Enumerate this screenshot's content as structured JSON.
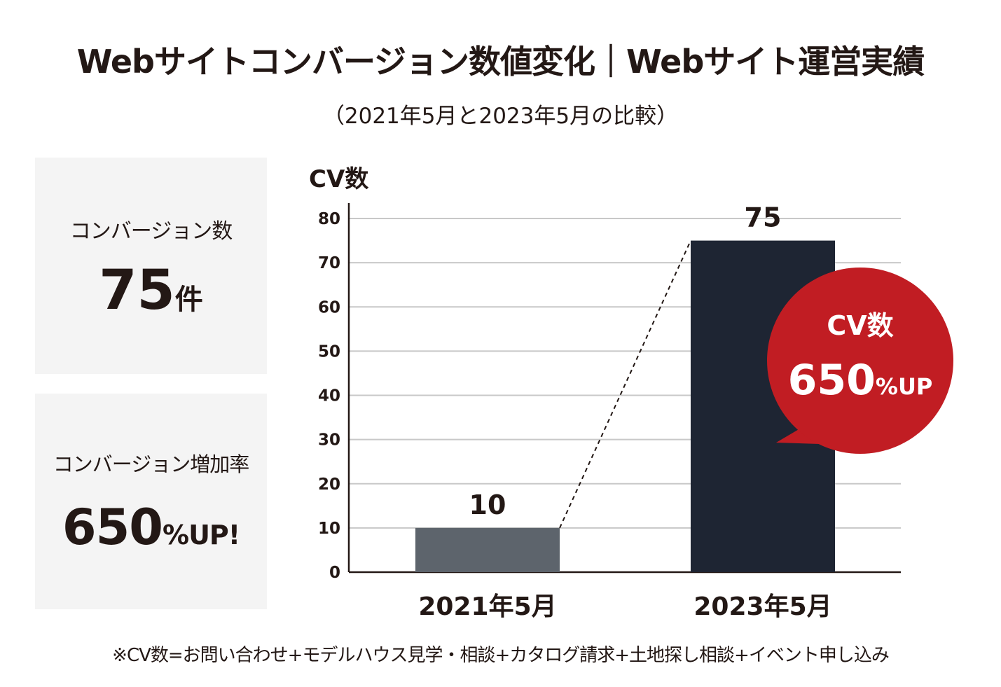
{
  "header": {
    "title": "Webサイトコンバージョン数値変化｜Webサイト運営実績",
    "subtitle": "（2021年5月と2023年5月の比較）"
  },
  "stats": {
    "conversions": {
      "label": "コンバージョン数",
      "value": "75",
      "unit": "件"
    },
    "growth": {
      "label": "コンバージョン増加率",
      "value": "650",
      "unit": "%UP!"
    }
  },
  "callout": {
    "line1": "CV数",
    "value": "650",
    "unit": "%UP"
  },
  "footnote": "※CV数=お問い合わせ+モデルハウス見学・相談+カタログ請求+土地探し相談+イベント申し込み",
  "colors": {
    "bar_2021": "#5d646c",
    "bar_2023": "#1e2533",
    "callout": "#c11d23",
    "grid": "#c8c8c8",
    "text": "#231815"
  },
  "chart_data": {
    "type": "bar",
    "title": "CV数",
    "ylabel": "CV数",
    "xlabel": "",
    "categories": [
      "2021年5月",
      "2023年5月"
    ],
    "values": [
      10,
      75
    ],
    "data_labels": [
      "10",
      "75"
    ],
    "ylim": [
      0,
      80
    ],
    "yticks": [
      0,
      10,
      20,
      30,
      40,
      50,
      60,
      70,
      80
    ],
    "grid": true,
    "connector": "dashed line from top of 2021 bar to top of 2023 bar"
  }
}
